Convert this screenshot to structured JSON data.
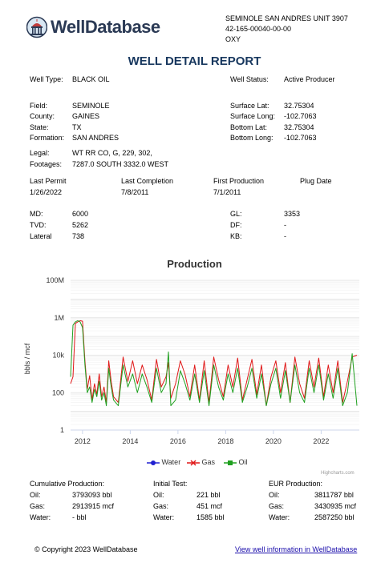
{
  "brand": {
    "name_part1": "Well",
    "name_part2": "Database"
  },
  "header": {
    "well_name": "SEMINOLE SAN ANDRES UNIT 3907",
    "api": "42-165-00040-00-00",
    "operator": "OXY"
  },
  "report_title": "WELL DETAIL REPORT",
  "well_type": {
    "label": "Well Type:",
    "value": "BLACK OIL"
  },
  "well_status": {
    "label": "Well Status:",
    "value": "Active Producer"
  },
  "location": {
    "field": {
      "label": "Field:",
      "value": "SEMINOLE"
    },
    "county": {
      "label": "County:",
      "value": "GAINES"
    },
    "state": {
      "label": "State:",
      "value": "TX"
    },
    "formation": {
      "label": "Formation:",
      "value": "SAN ANDRES"
    },
    "surface_lat": {
      "label": "Surface Lat:",
      "value": "32.75304"
    },
    "surface_long": {
      "label": "Surface Long:",
      "value": "-102.7063"
    },
    "bottom_lat": {
      "label": "Bottom Lat:",
      "value": "32.75304"
    },
    "bottom_long": {
      "label": "Bottom Long:",
      "value": "-102.7063"
    }
  },
  "legal": {
    "label": "Legal:",
    "value": "WT RR CO, G, 229, 302,"
  },
  "footages": {
    "label": "Footages:",
    "value": "7287.0 SOUTH 3332.0 WEST"
  },
  "dates": {
    "last_permit": {
      "label": "Last Permit",
      "value": "1/26/2022"
    },
    "last_completion": {
      "label": "Last Completion",
      "value": "7/8/2011"
    },
    "first_production": {
      "label": "First Production",
      "value": "7/1/2011"
    },
    "plug_date": {
      "label": "Plug Date",
      "value": ""
    }
  },
  "depths": {
    "md": {
      "label": "MD:",
      "value": "6000"
    },
    "tvd": {
      "label": "TVD:",
      "value": "5262"
    },
    "lateral": {
      "label": "Lateral",
      "value": "738"
    },
    "gl": {
      "label": "GL:",
      "value": "3353"
    },
    "df": {
      "label": "DF:",
      "value": "-"
    },
    "kb": {
      "label": "KB:",
      "value": "-"
    }
  },
  "chart_data": {
    "type": "line",
    "title": "Production",
    "ylabel": "bbls / mcf",
    "yscale": "log",
    "ylim": [
      1,
      100000000
    ],
    "y_ticks": [
      "1",
      "100",
      "10k",
      "1M",
      "100M"
    ],
    "x_ticks": [
      "2012",
      "2014",
      "2016",
      "2018",
      "2020",
      "2022"
    ],
    "xlim": [
      2011.5,
      2023.6
    ],
    "legend": [
      "Water",
      "Gas",
      "Oil"
    ],
    "credit": "Highcharts.com",
    "series": [
      {
        "name": "Water",
        "color": "#2020d0",
        "x": [],
        "y": []
      },
      {
        "name": "Gas",
        "color": "#e01818",
        "x": [
          2011.5,
          2011.6,
          2011.7,
          2011.8,
          2011.9,
          2012.0,
          2012.1,
          2012.2,
          2012.3,
          2012.4,
          2012.5,
          2012.6,
          2012.7,
          2012.8,
          2012.9,
          2013.0,
          2013.1,
          2013.2,
          2013.3,
          2013.5,
          2013.7,
          2013.9,
          2014.1,
          2014.3,
          2014.5,
          2014.7,
          2014.9,
          2015.1,
          2015.3,
          2015.5,
          2015.6,
          2015.7,
          2015.9,
          2016.1,
          2016.3,
          2016.5,
          2016.7,
          2016.9,
          2017.1,
          2017.3,
          2017.5,
          2017.7,
          2017.9,
          2018.1,
          2018.3,
          2018.5,
          2018.7,
          2018.9,
          2019.1,
          2019.3,
          2019.5,
          2019.7,
          2019.9,
          2020.1,
          2020.3,
          2020.5,
          2020.7,
          2020.9,
          2021.1,
          2021.3,
          2021.5,
          2021.7,
          2021.9,
          2022.1,
          2022.3,
          2022.5,
          2022.7,
          2022.9,
          2023.1,
          2023.3,
          2023.5
        ],
        "y": [
          300,
          700,
          500000,
          600000,
          700000,
          650000,
          5000,
          150,
          800,
          40,
          300,
          80,
          1000,
          60,
          200,
          30,
          5000,
          400,
          60,
          30,
          8000,
          400,
          5000,
          300,
          3000,
          500,
          40,
          6000,
          200,
          700,
          4000,
          50,
          300,
          5000,
          900,
          60,
          3000,
          40,
          5000,
          30,
          8000,
          500,
          60,
          3000,
          200,
          7000,
          40,
          500,
          6000,
          80,
          3000,
          20,
          700,
          5000,
          100,
          4000,
          30,
          8000,
          300,
          50,
          5000,
          200,
          7000,
          60,
          3000,
          100,
          5000,
          30,
          400,
          8000,
          10000
        ]
      },
      {
        "name": "Oil",
        "color": "#20a020",
        "x": [
          2011.5,
          2011.6,
          2011.7,
          2011.8,
          2011.9,
          2012.0,
          2012.1,
          2012.2,
          2012.3,
          2012.4,
          2012.5,
          2012.6,
          2012.7,
          2012.8,
          2012.9,
          2013.0,
          2013.1,
          2013.2,
          2013.3,
          2013.5,
          2013.7,
          2013.9,
          2014.1,
          2014.3,
          2014.5,
          2014.7,
          2014.9,
          2015.1,
          2015.3,
          2015.5,
          2015.6,
          2015.7,
          2015.9,
          2016.1,
          2016.3,
          2016.5,
          2016.7,
          2016.9,
          2017.1,
          2017.3,
          2017.5,
          2017.7,
          2017.9,
          2018.1,
          2018.3,
          2018.5,
          2018.7,
          2018.9,
          2019.1,
          2019.3,
          2019.5,
          2019.7,
          2019.9,
          2020.1,
          2020.3,
          2020.5,
          2020.7,
          2020.9,
          2021.1,
          2021.3,
          2021.5,
          2021.7,
          2021.9,
          2022.1,
          2022.3,
          2022.5,
          2022.7,
          2022.9,
          2023.1,
          2023.3,
          2023.5
        ],
        "y": [
          700,
          400000,
          600000,
          700000,
          600000,
          300000,
          3000,
          100,
          200,
          30,
          150,
          60,
          400,
          40,
          100,
          20,
          2000,
          200,
          40,
          20,
          3000,
          200,
          1000,
          100,
          1000,
          200,
          30,
          2000,
          100,
          300,
          15000,
          20,
          40,
          1500,
          300,
          40,
          1000,
          30,
          1500,
          20,
          3000,
          200,
          40,
          1000,
          100,
          2000,
          30,
          200,
          2000,
          50,
          1000,
          20,
          300,
          2000,
          50,
          1500,
          30,
          3000,
          100,
          30,
          2000,
          100,
          3000,
          40,
          1000,
          50,
          2000,
          20,
          100,
          12000,
          20
        ]
      }
    ]
  },
  "cumulative": {
    "heading": "Cumulative Production:",
    "oil": {
      "label": "Oil:",
      "value": "3793093 bbl"
    },
    "gas": {
      "label": "Gas:",
      "value": "2913915 mcf"
    },
    "water": {
      "label": "Water:",
      "value": "- bbl"
    }
  },
  "initial_test": {
    "heading": "Initial Test:",
    "oil": {
      "label": "Oil:",
      "value": "221 bbl"
    },
    "gas": {
      "label": "Gas:",
      "value": "451 mcf"
    },
    "water": {
      "label": "Water:",
      "value": "1585 bbl"
    }
  },
  "eur": {
    "heading": "EUR Production:",
    "oil": {
      "label": "Oil:",
      "value": "3811787 bbl"
    },
    "gas": {
      "label": "Gas:",
      "value": "3430935 mcf"
    },
    "water": {
      "label": "Water:",
      "value": "2587250 bbl"
    }
  },
  "footer": {
    "copyright": "© Copyright 2023 WellDatabase",
    "link_text": "View well information in WellDatabase"
  },
  "colors": {
    "title_blue": "#17375e",
    "link_blue": "#1a0dab"
  }
}
